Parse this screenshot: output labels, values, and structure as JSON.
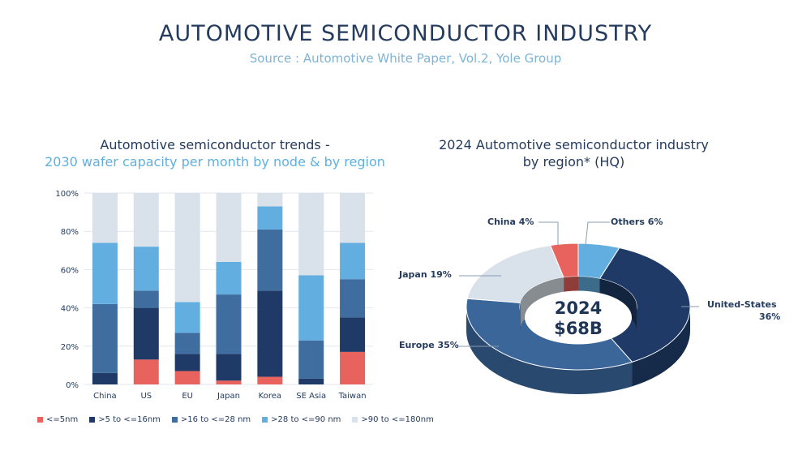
{
  "header": {
    "title": "AUTOMOTIVE SEMICONDUCTOR INDUSTRY",
    "source": "Source : Automotive White Paper, Vol.2, Yole Group"
  },
  "colors": {
    "le5": "#e8625e",
    "n5to16": "#1f3a66",
    "n16to28": "#3f6d9f",
    "n28to90": "#63aee0",
    "n90to180": "#d9e1ea",
    "pie_us": "#1f3a66",
    "pie_europe": "#3a669a",
    "pie_japan": "#d9e1ea",
    "pie_china": "#e8625e",
    "pie_others": "#63aee0"
  },
  "chart_data": [
    {
      "type": "bar",
      "stacked": true,
      "title": "Automotive semiconductor trends -",
      "subtitle": "2030 wafer capacity per month by node & by region",
      "categories": [
        "China",
        "US",
        "EU",
        "Japan",
        "Korea",
        "SE Asia",
        "Taiwan"
      ],
      "yticks": [
        "0%",
        "20%",
        "40%",
        "60%",
        "80%",
        "100%"
      ],
      "ylim": [
        0,
        100
      ],
      "grid": true,
      "legend_position": "bottom",
      "series": [
        {
          "name": "<=5nm",
          "color_key": "le5",
          "values": [
            0,
            13,
            7,
            2,
            4,
            0,
            17
          ]
        },
        {
          "name": ">5 to <=16nm",
          "color_key": "n5to16",
          "values": [
            6,
            27,
            9,
            14,
            45,
            3,
            18
          ]
        },
        {
          "name": ">16 to <=28 nm",
          "color_key": "n16to28",
          "values": [
            36,
            9,
            11,
            31,
            32,
            20,
            20
          ]
        },
        {
          "name": ">28 to <=90 nm",
          "color_key": "n28to90",
          "values": [
            32,
            23,
            16,
            17,
            12,
            34,
            19
          ]
        },
        {
          "name": ">90 to <=180nm",
          "color_key": "n90to180",
          "values": [
            26,
            28,
            57,
            36,
            7,
            43,
            26
          ]
        }
      ]
    },
    {
      "type": "pie",
      "donut": true,
      "title": "2024 Automotive semiconductor industry",
      "subtitle": "by region* (HQ)",
      "center_text": [
        "2024",
        "$68B"
      ],
      "slices": [
        {
          "label": "Others 6%",
          "value": 6,
          "color_key": "pie_others"
        },
        {
          "label": "United-States",
          "label2": "36%",
          "value": 36,
          "color_key": "pie_us"
        },
        {
          "label": "Europe 35%",
          "value": 35,
          "color_key": "pie_europe"
        },
        {
          "label": "Japan 19%",
          "value": 19,
          "color_key": "pie_japan"
        },
        {
          "label": "China 4%",
          "value": 4,
          "color_key": "pie_china"
        }
      ]
    }
  ]
}
